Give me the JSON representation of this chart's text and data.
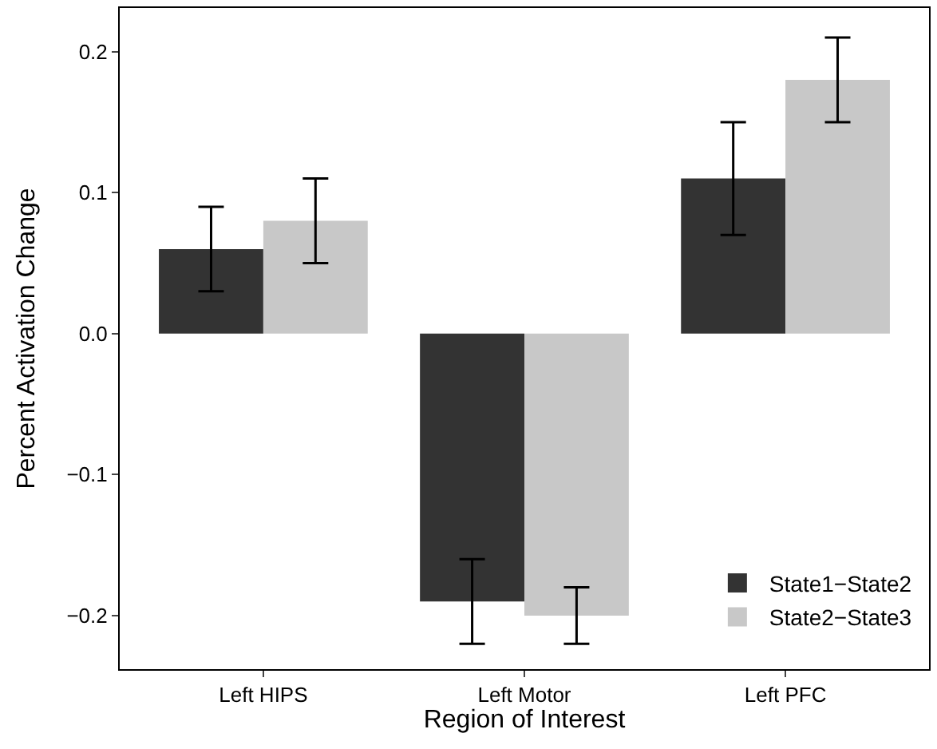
{
  "chart_data": {
    "type": "bar",
    "xlabel": "Region of Interest",
    "ylabel": "Percent Activation Change",
    "categories": [
      "Left HIPS",
      "Left Motor",
      "Left PFC"
    ],
    "series": [
      {
        "name": "State1−State2",
        "color": "#333333",
        "values": [
          0.06,
          -0.19,
          0.11
        ],
        "errors": [
          [
            0.03,
            0.09
          ],
          [
            -0.22,
            -0.16
          ],
          [
            0.07,
            0.15
          ]
        ]
      },
      {
        "name": "State2−State3",
        "color": "#c8c8c8",
        "values": [
          0.08,
          -0.2,
          0.18
        ],
        "errors": [
          [
            0.05,
            0.11
          ],
          [
            -0.22,
            -0.18
          ],
          [
            0.15,
            0.21
          ]
        ]
      }
    ],
    "ylim": [
      -0.238,
      0.231
    ],
    "yticks": [
      {
        "value": -0.2,
        "label": "−0.2"
      },
      {
        "value": -0.1,
        "label": "−0.1"
      },
      {
        "value": 0,
        "label": "0.0"
      },
      {
        "value": 0.1,
        "label": "0.1"
      },
      {
        "value": 0.2,
        "label": "0.2"
      }
    ],
    "legend": "bottom right"
  }
}
